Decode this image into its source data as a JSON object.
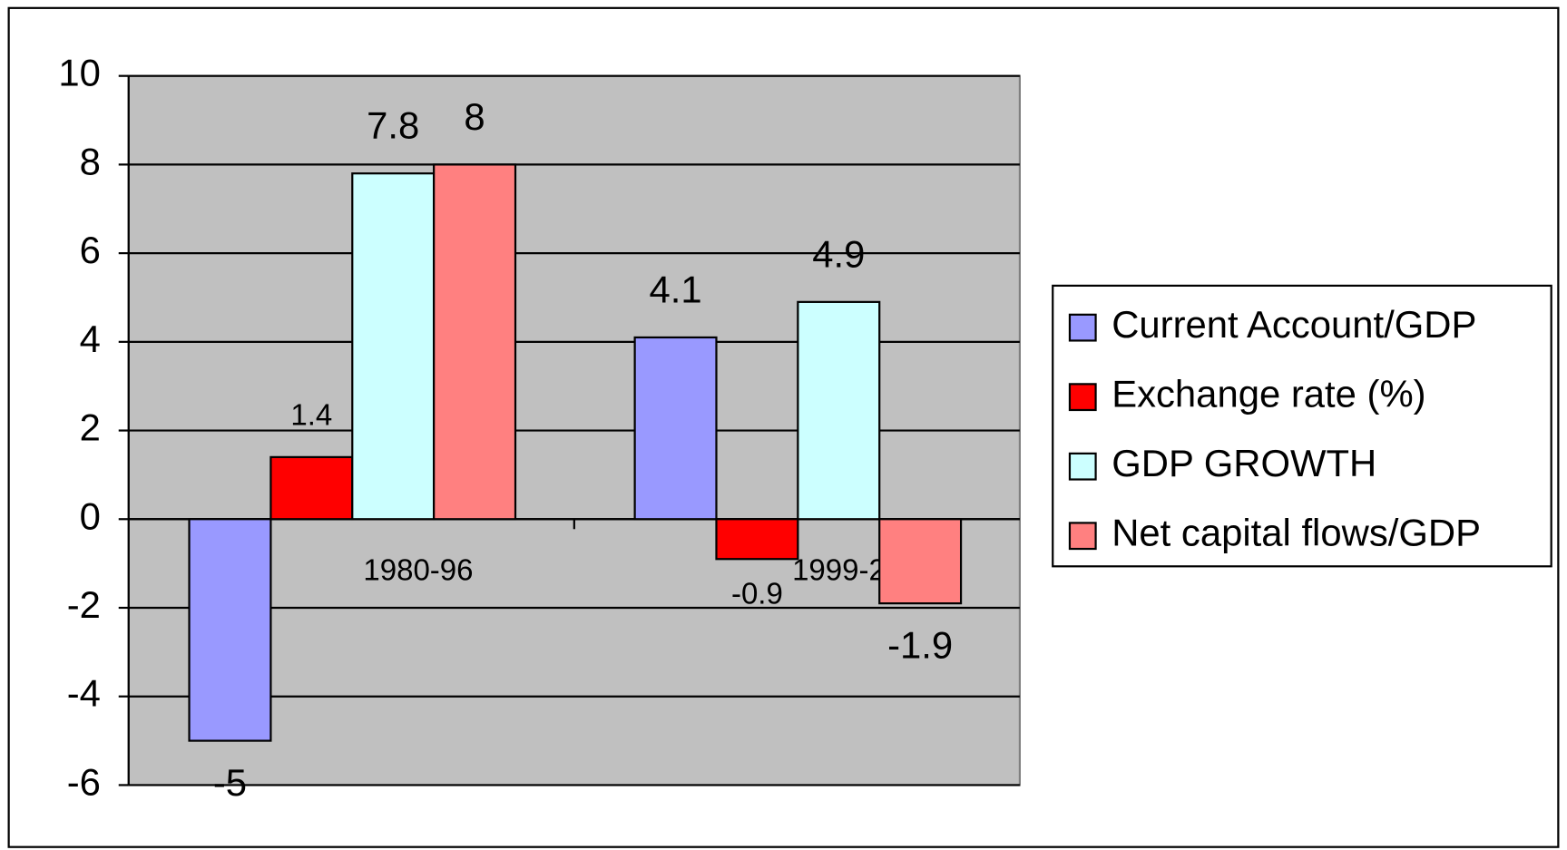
{
  "chart_data": {
    "type": "bar",
    "categories": [
      "1980-96",
      "1999-2006"
    ],
    "series": [
      {
        "name": "Current Account/GDP",
        "color": "#9999ff",
        "values": [
          -5,
          4.1
        ]
      },
      {
        "name": "Exchange rate (%)",
        "color": "#ff0000",
        "values": [
          1.4,
          -0.9
        ]
      },
      {
        "name": "GDP GROWTH",
        "color": "#ccffff",
        "values": [
          7.8,
          4.9
        ]
      },
      {
        "name": "Net capital flows/GDP",
        "color": "#ff8080",
        "values": [
          8,
          -1.9
        ]
      }
    ],
    "ylim": [
      -6,
      10
    ],
    "yticks": [
      -6,
      -4,
      -2,
      0,
      2,
      4,
      6,
      8,
      10
    ],
    "grid": true,
    "plot_background": "#c0c0c0",
    "legend": "right"
  }
}
